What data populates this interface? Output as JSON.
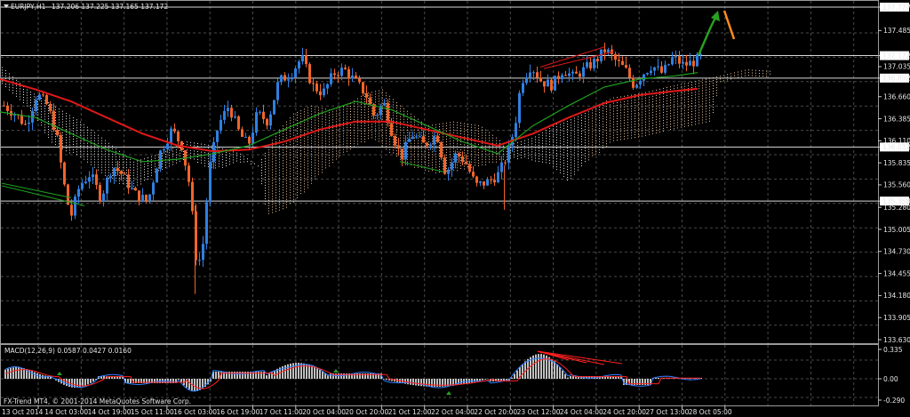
{
  "window": {
    "symbol_label": "EURJPY,H1",
    "ohlc": "137.206 137.225 137.165 137.172"
  },
  "price_axis": {
    "labels": [
      "137.777",
      "137.485",
      "137.172",
      "137.035",
      "136.892",
      "136.660",
      "136.385",
      "136.110",
      "136.032",
      "135.835",
      "135.560",
      "135.358",
      "135.280",
      "135.005",
      "134.730",
      "134.455",
      "134.180",
      "133.905",
      "133.630"
    ]
  },
  "price_lines": [
    {
      "label": "137.777"
    },
    {
      "label": "137.172"
    },
    {
      "label": "136.892"
    },
    {
      "label": "136.032"
    },
    {
      "label": "135.358"
    }
  ],
  "macd": {
    "label": "MACD(12,26,9) 0.0587 0.0427 0.0160",
    "axis_labels": [
      "0.335",
      "0.00",
      "-0.290"
    ]
  },
  "footer": {
    "credit": "FX-Trend MT4, © 2001-2014 MetaQuotes Software Corp."
  },
  "time_axis": {
    "labels": [
      "13 Oct 2014",
      "14 Oct 03:00",
      "14 Oct 19:00",
      "15 Oct 11:00",
      "16 Oct 03:00",
      "16 Oct 19:00",
      "17 Oct 11:00",
      "20 Oct 04:00",
      "20 Oct 20:00",
      "21 Oct 12:00",
      "22 Oct 04:00",
      "22 Oct 20:00",
      "23 Oct 12:00",
      "24 Oct 04:00",
      "24 Oct 20:00",
      "27 Oct 13:00",
      "28 Oct 05:00"
    ]
  },
  "colors": {
    "background": "#000000",
    "grid": "#4a4a4a",
    "bull_candle": "#2f7fe0",
    "bear_candle": "#f0642a",
    "ma_red": "#e01818",
    "ma_green": "#1fa01f",
    "cloud_white": "#e8e8e8",
    "cloud_tan": "#f0c8a0",
    "arrow_green": "#28a020",
    "arrow_orange": "#ff8c1a",
    "macd_hist": "#f0f0f0",
    "macd_blue": "#2f80ff",
    "macd_red": "#ff2020"
  }
}
